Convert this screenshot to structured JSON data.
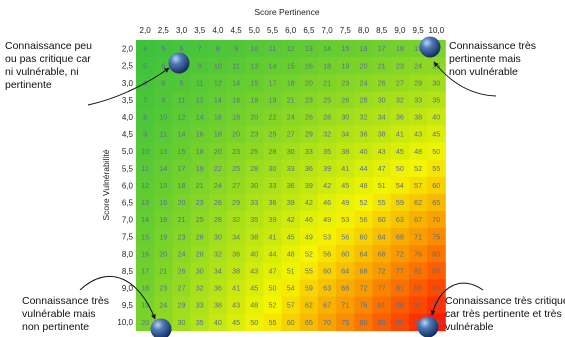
{
  "chart_data": {
    "type": "heatmap",
    "xlabel": "Score Pertinence",
    "ylabel": "Score Vulnérabilité",
    "x_ticks": [
      "2,0",
      "2,5",
      "3,0",
      "3,5",
      "4,0",
      "4,5",
      "5,0",
      "5,5",
      "6,0",
      "6,5",
      "7,0",
      "7,5",
      "8,0",
      "8,5",
      "9,0",
      "9,5",
      "10,0"
    ],
    "y_ticks": [
      "2,0",
      "2,5",
      "3,0",
      "3,5",
      "4,0",
      "4,5",
      "5,0",
      "5,5",
      "6,0",
      "6,5",
      "7,0",
      "7,5",
      "8,0",
      "8,5",
      "9,0",
      "9,5",
      "10,0"
    ],
    "x_values": [
      2.0,
      2.5,
      3.0,
      3.5,
      4.0,
      4.5,
      5.0,
      5.5,
      6.0,
      6.5,
      7.0,
      7.5,
      8.0,
      8.5,
      9.0,
      9.5,
      10.0
    ],
    "y_values": [
      2.0,
      2.5,
      3.0,
      3.5,
      4.0,
      4.5,
      5.0,
      5.5,
      6.0,
      6.5,
      7.0,
      7.5,
      8.0,
      8.5,
      9.0,
      9.5,
      10.0
    ],
    "value_rule": "round(x * y)",
    "color_scale": [
      "#3ec23e",
      "#f5f500",
      "#ff1a00"
    ],
    "value_range": [
      4,
      100
    ],
    "annotations": [
      {
        "id": "top-left",
        "text": [
          "Connaissance peu",
          "ou pas critique car",
          "ni vulnérable, ni",
          "pertinente"
        ]
      },
      {
        "id": "top-right",
        "text": [
          "Connaissance très",
          "pertinente mais",
          "non vulnérable"
        ]
      },
      {
        "id": "bottom-left",
        "text": [
          "Connaissance très",
          "vulnérable mais",
          "non pertinente"
        ]
      },
      {
        "id": "bottom-right",
        "text": [
          "Connaissance très critique",
          "car très pertinente et très",
          "vulnérable"
        ]
      }
    ]
  }
}
